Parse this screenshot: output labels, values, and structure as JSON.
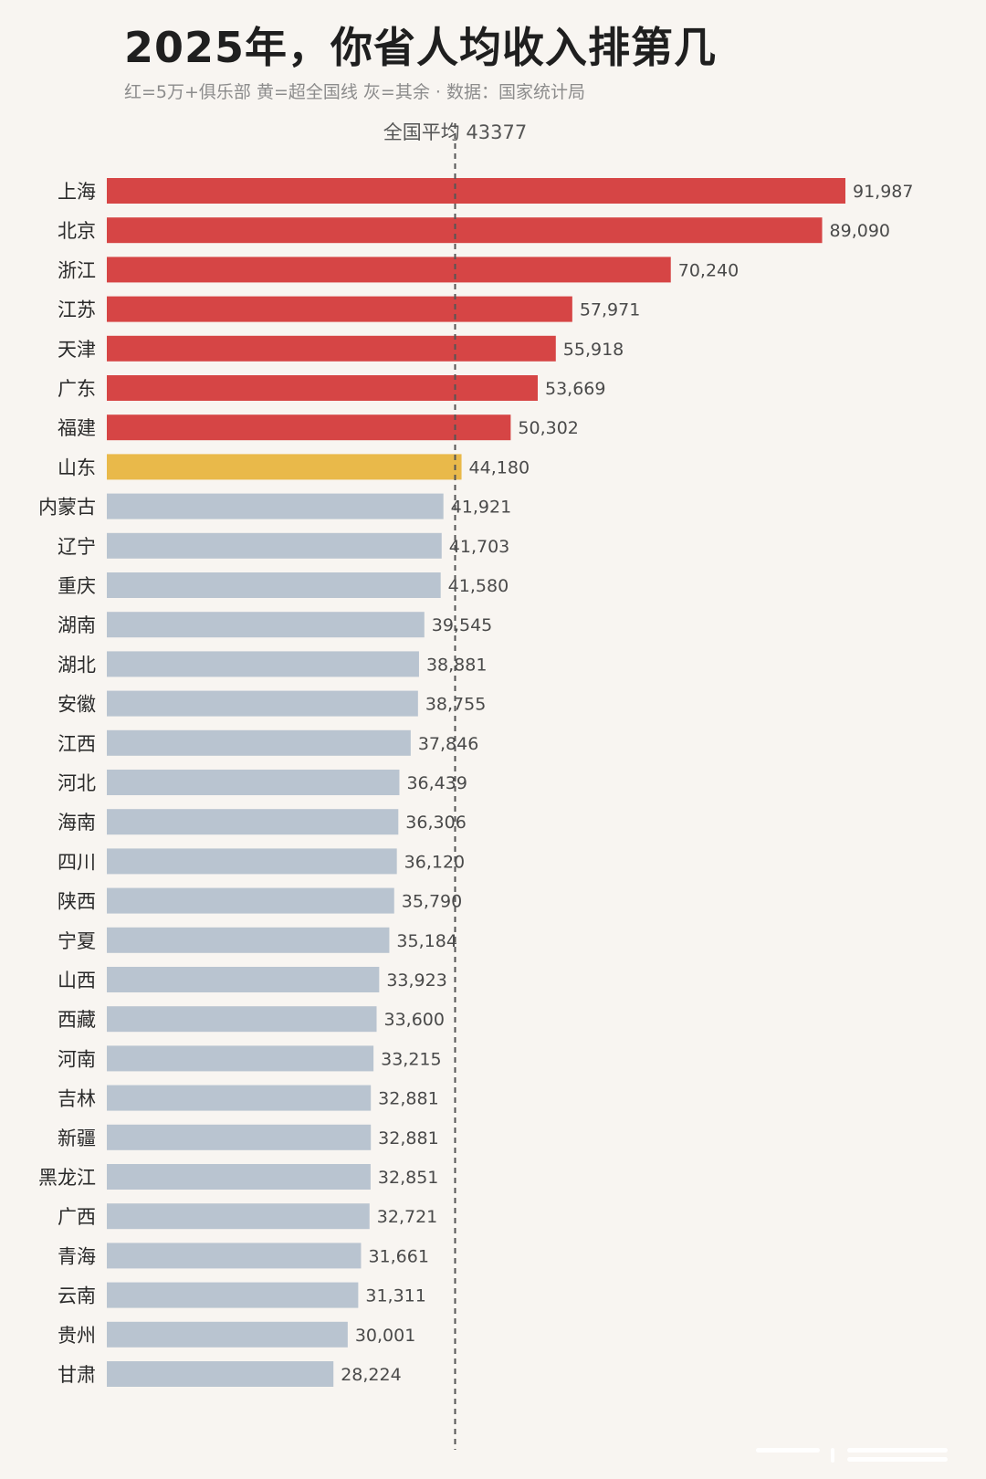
{
  "title": "2025年，你省人均收入排第几",
  "subtitle": "红=5万+俱乐部 黄=超全国线 灰=其余 · 数据：国家统计局",
  "colors": {
    "red": "#d64545",
    "yellow": "#e9b94a",
    "gray": "#b9c4d0",
    "reference_line": "#555555",
    "background": "#f8f5f1"
  },
  "chart_data": {
    "type": "bar",
    "orientation": "horizontal",
    "reference": {
      "label": "全国平均 43377",
      "value": 43377
    },
    "xlim": [
      0,
      100000
    ],
    "categories": [
      "上海",
      "北京",
      "浙江",
      "江苏",
      "天津",
      "广东",
      "福建",
      "山东",
      "内蒙古",
      "辽宁",
      "重庆",
      "湖南",
      "湖北",
      "安徽",
      "江西",
      "河北",
      "海南",
      "四川",
      "陕西",
      "宁夏",
      "山西",
      "西藏",
      "河南",
      "吉林",
      "新疆",
      "黑龙江",
      "广西",
      "青海",
      "云南",
      "贵州",
      "甘肃"
    ],
    "values": [
      91987,
      89090,
      70240,
      57971,
      55918,
      53669,
      50302,
      44180,
      41921,
      41703,
      41580,
      39545,
      38881,
      38755,
      37846,
      36439,
      36306,
      36120,
      35790,
      35184,
      33923,
      33600,
      33215,
      32881,
      32881,
      32851,
      32721,
      31661,
      31311,
      30001,
      28224
    ],
    "value_labels": [
      "91,987",
      "89,090",
      "70,240",
      "57,971",
      "55,918",
      "53,669",
      "50,302",
      "44,180",
      "41,921",
      "41,703",
      "41,580",
      "39,545",
      "38,881",
      "38,755",
      "37,846",
      "36,439",
      "36,306",
      "36,120",
      "35,790",
      "35,184",
      "33,923",
      "33,600",
      "33,215",
      "32,881",
      "32,881",
      "32,851",
      "32,721",
      "31,661",
      "31,311",
      "30,001",
      "28,224"
    ],
    "color_groups": [
      "red",
      "red",
      "red",
      "red",
      "red",
      "red",
      "red",
      "yellow",
      "gray",
      "gray",
      "gray",
      "gray",
      "gray",
      "gray",
      "gray",
      "gray",
      "gray",
      "gray",
      "gray",
      "gray",
      "gray",
      "gray",
      "gray",
      "gray",
      "gray",
      "gray",
      "gray",
      "gray",
      "gray",
      "gray",
      "gray"
    ]
  }
}
